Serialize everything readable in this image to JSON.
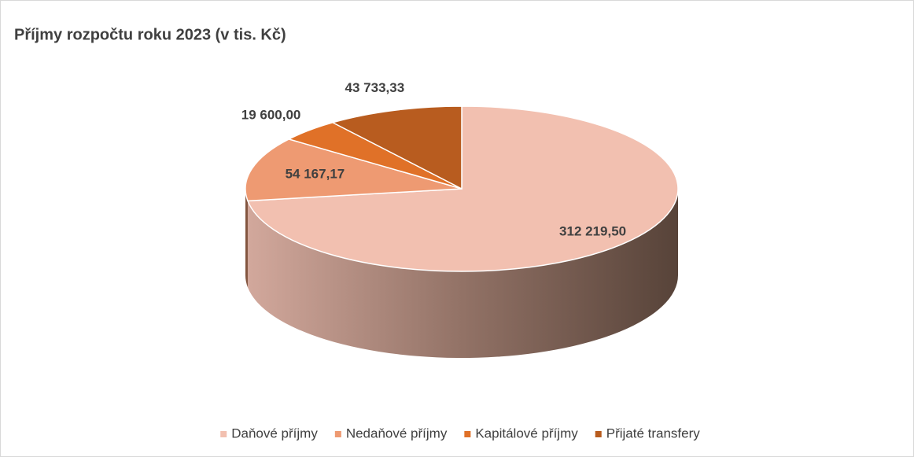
{
  "chart_data": {
    "type": "pie",
    "title": "Příjmy rozpočtu roku 2023 (v tis. Kč)",
    "categories": [
      "Daňové příjmy",
      "Nedaňové příjmy",
      "Kapitálové příjmy",
      "Přijaté transfery"
    ],
    "values": [
      312219.5,
      54167.17,
      19600,
      43733.33
    ],
    "value_labels": [
      "312 219,50",
      "54 167,17",
      "19 600,00",
      "43 733,33"
    ],
    "colors": [
      "#f2c0b0",
      "#ee9a72",
      "#e07128",
      "#b85c1f"
    ],
    "legend": "bottom"
  }
}
